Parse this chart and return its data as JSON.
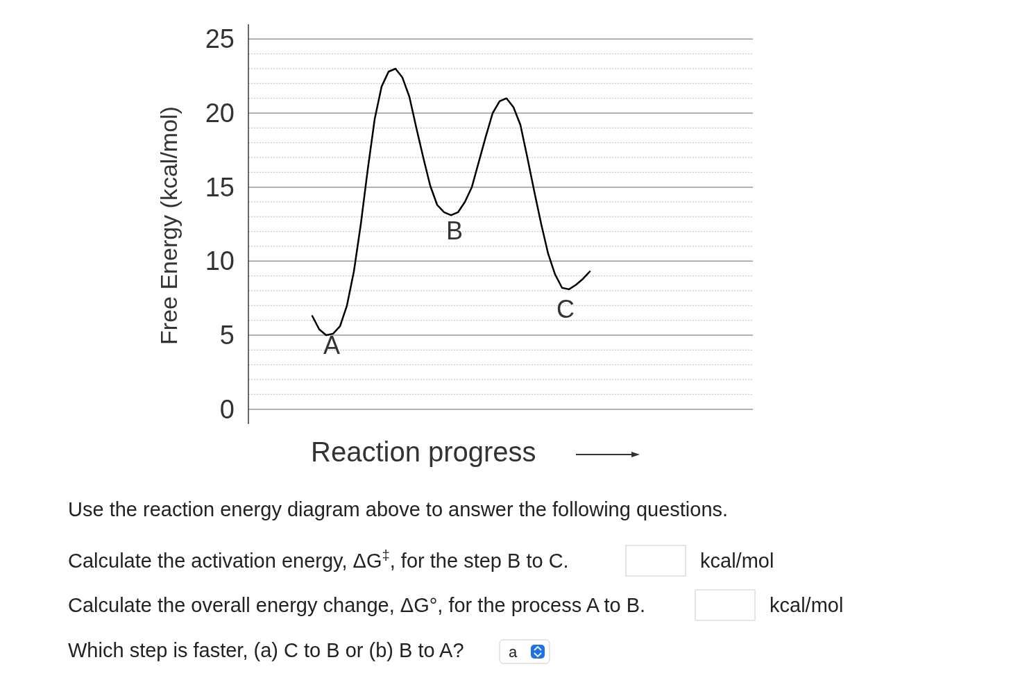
{
  "chart_data": {
    "type": "line",
    "ylabel": "Free Energy (kcal/mol)",
    "xlabel": "Reaction progress",
    "categories": [
      null,
      null,
      null,
      null,
      null,
      null,
      null,
      null,
      null,
      null,
      null,
      null,
      null,
      null,
      null,
      null,
      null,
      null,
      null,
      null,
      null,
      null,
      null,
      null,
      null,
      null,
      null,
      null,
      null,
      null,
      null,
      null,
      null,
      null,
      null,
      null,
      null,
      null,
      null,
      null,
      null
    ],
    "series": [
      {
        "color": "#000000",
        "values": [
          6.3,
          5.4,
          5.0,
          5.1,
          5.6,
          7.0,
          9.3,
          12.5,
          16.2,
          19.6,
          21.8,
          22.8,
          23.0,
          22.4,
          21.1,
          19.0,
          17.0,
          15.1,
          13.8,
          13.3,
          13.1,
          13.3,
          14.0,
          15.0,
          16.7,
          18.4,
          20.0,
          20.8,
          21.0,
          20.4,
          19.2,
          17.0,
          14.7,
          12.5,
          10.5,
          9.1,
          8.2,
          8.1,
          8.4,
          8.8,
          9.3
        ]
      }
    ],
    "ylim": [
      -1,
      26
    ],
    "yticks": [
      0,
      {
        "value": 1,
        "label": null
      },
      {
        "value": 2,
        "label": null
      },
      {
        "value": 3,
        "label": null
      },
      {
        "value": 4,
        "label": null
      },
      5,
      {
        "value": 6,
        "label": null
      },
      {
        "value": 7,
        "label": null
      },
      {
        "value": 8,
        "label": null
      },
      {
        "value": 9,
        "label": null
      },
      10,
      {
        "value": 11,
        "label": null
      },
      {
        "value": 12,
        "label": null
      },
      {
        "value": 13,
        "label": null
      },
      {
        "value": 14,
        "label": null
      },
      15,
      {
        "value": 16,
        "label": null
      },
      {
        "value": 17,
        "label": null
      },
      {
        "value": 18,
        "label": null
      },
      {
        "value": 19,
        "label": null
      },
      20,
      {
        "value": 21,
        "label": null
      },
      {
        "value": 22,
        "label": null
      },
      {
        "value": 23,
        "label": null
      },
      {
        "value": 24,
        "label": null
      },
      25
    ],
    "grid": "y",
    "tick_labels": "y",
    "marker": "none",
    "line_style": "solid",
    "annotations": [
      "A",
      "B",
      "C",
      "Use the reaction energy diagram above to answer the following questions.",
      "Calculate the activation energy, ΔG$^{‡}$, for the step B to C.",
      "kcal/mol",
      "Calculate the overall energy change, ΔG°, for the process A to B.",
      "kcal/mol",
      "Which step is faster, (a) C to B or (b) B to A?",
      "a"
    ]
  }
}
